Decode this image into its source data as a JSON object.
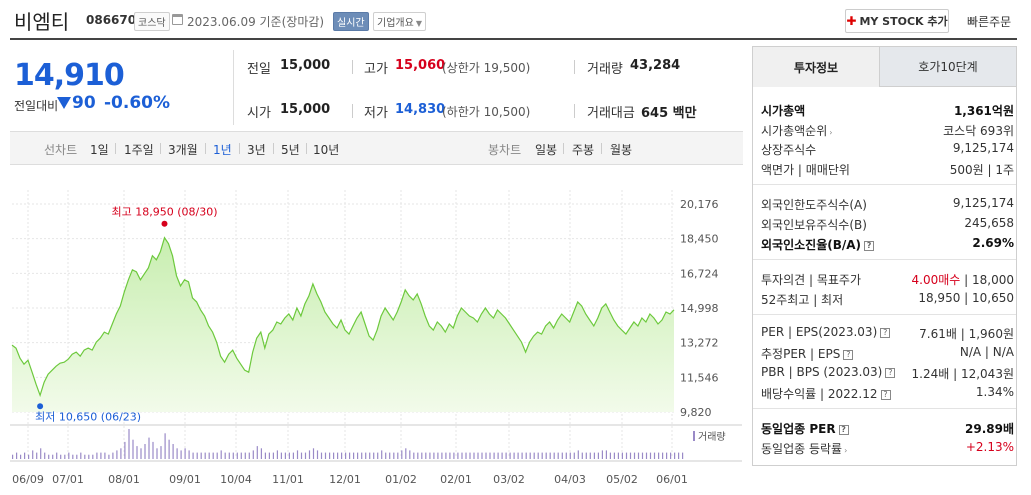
{
  "header": {
    "name": "비엠티",
    "code": "086670",
    "market": "코스닥",
    "date_text": "2023.06.09 기준(장마감)",
    "realtime_label": "실시간",
    "company_info_label": "기업개요",
    "mystock_label": "MY STOCK 추가",
    "quick_order_label": "빠른주문"
  },
  "price": {
    "current": "14,910",
    "change_label": "전일대비",
    "change_value": "90",
    "change_pct": "-0.60%"
  },
  "summary": {
    "prev_label": "전일",
    "prev_value": "15,000",
    "high_label": "고가",
    "high_value": "15,060",
    "upper_limit": "(상한가 19,500)",
    "volume_label": "거래량",
    "volume_value": "43,284",
    "open_label": "시가",
    "open_value": "15,000",
    "low_label": "저가",
    "low_value": "14,830",
    "lower_limit": "(하한가 10,500)",
    "amount_label": "거래대금",
    "amount_value": "645 백만"
  },
  "toolbar": {
    "line_label": "선차트",
    "periods": [
      "1일",
      "1주일",
      "3개월",
      "1년",
      "3년",
      "5년",
      "10년"
    ],
    "active_period": "1년",
    "candle_label": "봉차트",
    "candles": [
      "일봉",
      "주봉",
      "월봉"
    ]
  },
  "chart_data": {
    "type": "area",
    "y_ticks": [
      "20,176",
      "18,450",
      "16,724",
      "14,998",
      "13,272",
      "11,546",
      "9,820"
    ],
    "ylim": [
      9820,
      20176
    ],
    "x_ticks": [
      "06/09",
      "07/01",
      "08/01",
      "09/01",
      "10/04",
      "11/01",
      "12/01",
      "01/02",
      "02/01",
      "03/02",
      "04/03",
      "05/02",
      "06/01"
    ],
    "high_label": "최고 18,950 (08/30)",
    "low_label": "최저 10,650 (06/23)",
    "volume_label": "거래량",
    "prices": [
      13150,
      13000,
      12500,
      12200,
      12400,
      11800,
      11200,
      10650,
      11300,
      11700,
      11900,
      12100,
      12250,
      12300,
      12450,
      12700,
      12800,
      12600,
      12900,
      13000,
      12900,
      13300,
      13500,
      13800,
      13700,
      14200,
      14700,
      15100,
      15800,
      16400,
      16900,
      16800,
      16400,
      16700,
      17000,
      17600,
      17400,
      17800,
      18500,
      18200,
      17600,
      16600,
      16100,
      16400,
      16300,
      15500,
      15300,
      14900,
      14600,
      14100,
      13800,
      13300,
      12600,
      12300,
      12700,
      12900,
      12500,
      12200,
      11900,
      11800,
      12800,
      13500,
      13800,
      13000,
      13700,
      13900,
      14300,
      14200,
      14500,
      14700,
      14400,
      15000,
      14600,
      15200,
      15600,
      16200,
      15700,
      15300,
      14800,
      14500,
      14200,
      14000,
      14400,
      13900,
      13700,
      14100,
      14500,
      14800,
      14200,
      13600,
      13400,
      13900,
      14600,
      15000,
      14700,
      14400,
      14800,
      15300,
      15900,
      15600,
      15400,
      15700,
      15200,
      14600,
      14100,
      13900,
      14300,
      14100,
      13800,
      14200,
      14000,
      14600,
      15000,
      14800,
      14600,
      14500,
      14300,
      14700,
      15000,
      14700,
      14500,
      14900,
      14700,
      14500,
      14200,
      13900,
      13600,
      13300,
      12800,
      13300,
      13600,
      13800,
      13700,
      14100,
      14300,
      14000,
      14400,
      14700,
      14500,
      14300,
      14800,
      15300,
      15100,
      14700,
      14400,
      14100,
      14500,
      15000,
      15200,
      14800,
      14400,
      14100,
      13900,
      13700,
      14000,
      14300,
      14100,
      14500,
      14300,
      14700,
      14500,
      14200,
      14400,
      14800,
      14700,
      14910
    ],
    "volumes": [
      2,
      3,
      2,
      3,
      2,
      4,
      3,
      5,
      3,
      2,
      2,
      3,
      2,
      2,
      3,
      2,
      2,
      3,
      2,
      2,
      2,
      3,
      3,
      3,
      2,
      3,
      4,
      5,
      8,
      14,
      9,
      6,
      5,
      7,
      10,
      8,
      5,
      6,
      12,
      9,
      7,
      5,
      4,
      5,
      4,
      3,
      3,
      3,
      3,
      3,
      3,
      3,
      4,
      3,
      3,
      3,
      3,
      3,
      3,
      3,
      4,
      6,
      5,
      3,
      3,
      3,
      4,
      3,
      3,
      3,
      3,
      4,
      3,
      3,
      4,
      5,
      4,
      3,
      3,
      3,
      3,
      3,
      3,
      3,
      3,
      3,
      3,
      3,
      3,
      3,
      3,
      3,
      4,
      3,
      3,
      3,
      3,
      4,
      5,
      4,
      3,
      3,
      3,
      3,
      3,
      3,
      3,
      3,
      3,
      3,
      3,
      3,
      3,
      3,
      3,
      3,
      3,
      3,
      3,
      3,
      3,
      3,
      3,
      3,
      3,
      3,
      3,
      3,
      3,
      3,
      3,
      3,
      3,
      3,
      3,
      3,
      3,
      3,
      3,
      3,
      3,
      4,
      3,
      3,
      3,
      3,
      3,
      4,
      4,
      3,
      3,
      3,
      3,
      3,
      3,
      3,
      3,
      3,
      3,
      3,
      3,
      3,
      3,
      3,
      3,
      3,
      3,
      3
    ]
  },
  "invest": {
    "tab_invest": "투자정보",
    "tab_hoga": "호가10단계",
    "rows1": [
      {
        "label": "시가총액",
        "value": "1,361억원"
      },
      {
        "label": "시가총액순위",
        "value": "코스닥 693위"
      },
      {
        "label": "상장주식수",
        "value": "9,125,174"
      },
      {
        "label": "액면가 | 매매단위",
        "value": "500원 | 1주"
      }
    ],
    "rows2": [
      {
        "label": "외국인한도주식수(A)",
        "value": "9,125,174"
      },
      {
        "label": "외국인보유주식수(B)",
        "value": "245,658"
      },
      {
        "label": "외국인소진율(B/A)",
        "value": "2.69%"
      }
    ],
    "opinion_label": "투자의견 | 목표주가",
    "opinion_value": "4.00매수",
    "target_value": "18,000",
    "w52_label": "52주최고 | 최저",
    "w52_value": "18,950 | 10,650",
    "rows3": [
      {
        "label": "PER | EPS(2023.03)",
        "value": "7.61배 | 1,960원"
      },
      {
        "label": "추정PER | EPS",
        "value": "N/A | N/A"
      },
      {
        "label": "PBR | BPS (2023.03)",
        "value": "1.24배 | 12,043원"
      },
      {
        "label": "배당수익률 | 2022.12",
        "value": "1.34%"
      }
    ],
    "peer_per_label": "동일업종 PER",
    "peer_per_value": "29.89배",
    "peer_rate_label": "동일업종 등락률",
    "peer_rate_value": "+2.13%"
  },
  "colors": {
    "up": "#d6001c",
    "down": "#1c5fd6",
    "area_fill": "#c8eeb0",
    "area_line": "#6dc93d",
    "volume_bar": "#9a8ac7"
  }
}
